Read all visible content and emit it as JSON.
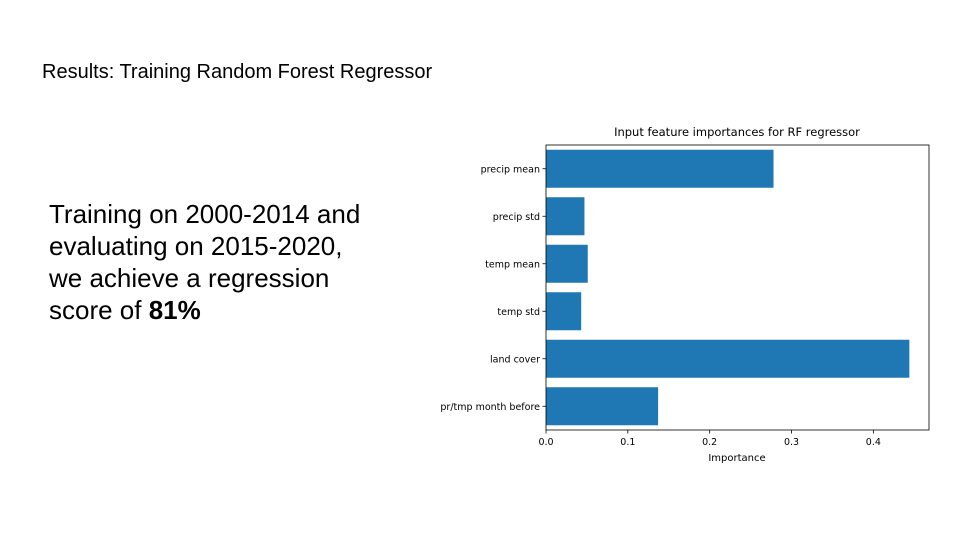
{
  "slide": {
    "title": "Results: Training Random Forest Regressor",
    "body_lines": [
      "Training on 2000-2014 and",
      "evaluating on 2015-2020,",
      "we achieve a regression",
      "score of "
    ],
    "body_emphasis": "81%"
  },
  "chart_data": {
    "type": "bar",
    "orientation": "horizontal",
    "title": "Input feature importances for RF regressor",
    "xlabel": "Importance",
    "ylabel": "",
    "categories": [
      "precip mean",
      "precip std",
      "temp mean",
      "temp std",
      "land cover",
      "pr/tmp month before"
    ],
    "values": [
      0.278,
      0.047,
      0.051,
      0.043,
      0.444,
      0.137
    ],
    "xlim": [
      0,
      0.468
    ],
    "xticks": [
      0.0,
      0.1,
      0.2,
      0.3,
      0.4
    ],
    "xtick_labels": [
      "0.0",
      "0.1",
      "0.2",
      "0.3",
      "0.4"
    ],
    "grid": false,
    "bar_color": "#1f77b4"
  }
}
